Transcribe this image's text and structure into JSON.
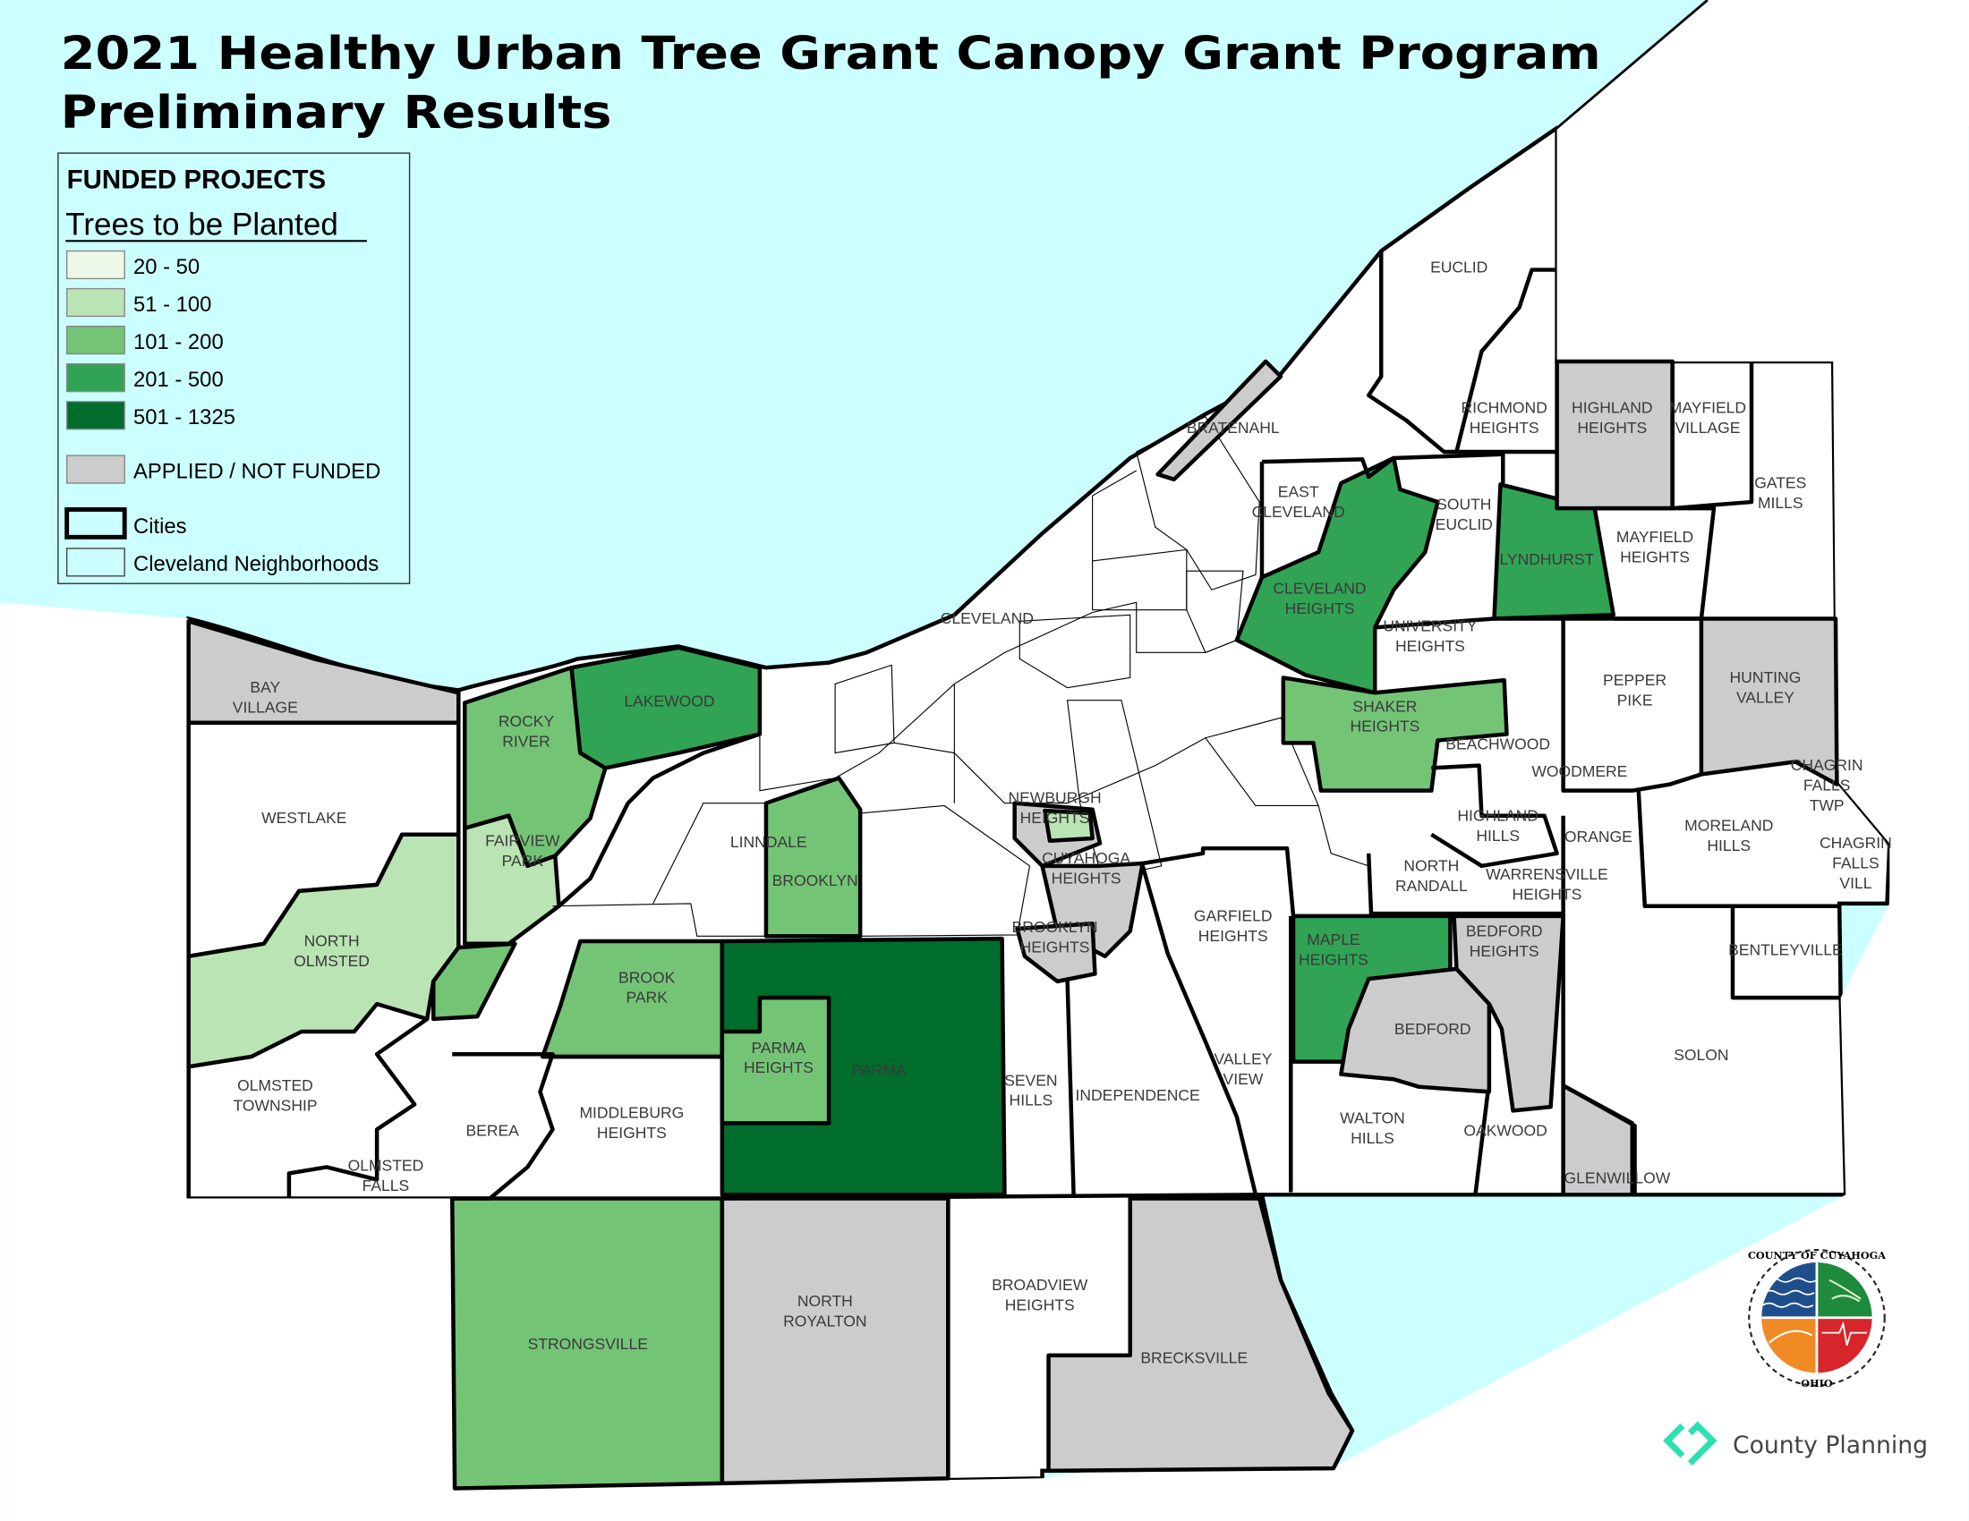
{
  "title": {
    "line1": "2021 Healthy Urban Tree Grant Canopy Grant Program",
    "line2": "Preliminary Results"
  },
  "legend": {
    "heading": "FUNDED PROJECTS",
    "subheading": "Trees to be Planted",
    "classes": [
      {
        "label": "20 - 50",
        "color": "#edf8e9"
      },
      {
        "label": "51 - 100",
        "color": "#bae4b3"
      },
      {
        "label": "101 - 200",
        "color": "#74c476"
      },
      {
        "label": "201 - 500",
        "color": "#31a354"
      },
      {
        "label": "501 - 1325",
        "color": "#006d2c"
      }
    ],
    "not_funded": {
      "label": "APPLIED / NOT FUNDED",
      "color": "#cccccc"
    },
    "cities": {
      "label": "Cities"
    },
    "neighborhoods": {
      "label": "Cleveland Neighborhoods",
      "color": "#ccffff"
    }
  },
  "colors": {
    "lake": "#ccffff",
    "land": "#ffffff",
    "border": "#000000"
  },
  "places": {
    "euclid": "EUCLID",
    "richmond_heights": "RICHMOND HEIGHTS",
    "highland_heights": "HIGHLAND HEIGHTS",
    "mayfield_village": "MAYFIELD VILLAGE",
    "gates_mills": "GATES MILLS",
    "bratenahl": "BRATENAHL",
    "east_cleveland": "EAST CLEVELAND",
    "south_euclid": "SOUTH EUCLID",
    "lyndhurst": "LYNDHURST",
    "mayfield_heights": "MAYFIELD HEIGHTS",
    "cleveland_heights": "CLEVELAND HEIGHTS",
    "university_heights": "UNIVERSITY HEIGHTS",
    "cleveland": "CLEVELAND",
    "pepper_pike": "PEPPER PIKE",
    "hunting_valley": "HUNTING VALLEY",
    "shaker_heights": "SHAKER HEIGHTS",
    "beachwood": "BEACHWOOD",
    "woodmere": "WOODMERE",
    "bay_village": "BAY VILLAGE",
    "lakewood": "LAKEWOOD",
    "rocky_river": "ROCKY RIVER",
    "westlake": "WESTLAKE",
    "fairview_park": "FAIRVIEW PARK",
    "linndale": "LINNDALE",
    "brooklyn": "BROOKLYN",
    "newburgh_heights": "NEWBURGH HEIGHTS",
    "cuyahoga_heights": "CUYAHOGA HEIGHTS",
    "highland_hills": "HIGHLAND HILLS",
    "orange": "ORANGE",
    "moreland_hills": "MORELAND HILLS",
    "chagrin_falls_twp": "CHAGRIN FALLS TWP",
    "chagrin_falls_vill": "CHAGRIN FALLS VILL",
    "north_randall": "NORTH RANDALL",
    "warrensville_heights": "WARRENSVILLE HEIGHTS",
    "north_olmsted": "NORTH OLMSTED",
    "garfield_heights": "GARFIELD HEIGHTS",
    "brooklyn_heights": "BROOKLYN HEIGHTS",
    "maple_heights": "MAPLE HEIGHTS",
    "bedford_heights": "BEDFORD HEIGHTS",
    "bentleyville": "BENTLEYVILLE",
    "brook_park": "BROOK PARK",
    "bedford": "BEDFORD",
    "solon": "SOLON",
    "parma_heights": "PARMA HEIGHTS",
    "parma": "PARMA",
    "seven_hills": "SEVEN HILLS",
    "independence": "INDEPENDENCE",
    "valley_view": "VALLEY VIEW",
    "olmsted_township": "OLMSTED TOWNSHIP",
    "berea": "BEREA",
    "middleburg_heights": "MIDDLEBURG HEIGHTS",
    "walton_hills": "WALTON HILLS",
    "oakwood": "OAKWOOD",
    "olmsted_falls": "OLMSTED FALLS",
    "glenwillow": "GLENWILLOW",
    "north_royalton": "NORTH ROYALTON",
    "broadview_heights": "BROADVIEW HEIGHTS",
    "strongsville": "STRONGSVILLE",
    "brecksville": "BRECKSVILLE"
  },
  "logos": {
    "seal_text_top": "COUNTY OF CUYAHOGA",
    "seal_text_bottom": "OHIO",
    "seal_colors": [
      "#1f4e8c",
      "#1e8a3c",
      "#f08a24",
      "#d7262b"
    ],
    "planning": "County Planning",
    "planning_color": "#2de0b0"
  }
}
